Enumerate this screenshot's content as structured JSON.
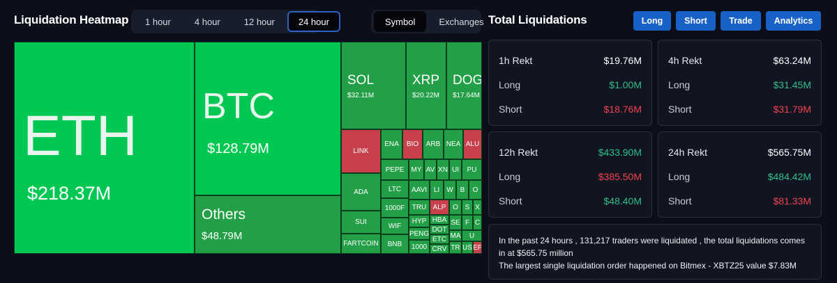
{
  "header": {
    "title": "Liquidation Heatmap",
    "time_tabs": [
      "1 hour",
      "4 hour",
      "12 hour",
      "24 hour"
    ],
    "active_time_tab": "24 hour",
    "mode_tabs": [
      "Symbol",
      "Exchanges"
    ],
    "active_mode_tab": "Symbol"
  },
  "right_header": {
    "title": "Total Liquidations",
    "buttons": [
      "Long",
      "Short",
      "Trade",
      "Analytics"
    ]
  },
  "heatmap": {
    "big": [
      {
        "symbol": "ETH",
        "value": "$218.37M"
      },
      {
        "symbol": "BTC",
        "value": "$128.79M"
      },
      {
        "symbol": "Others",
        "value": "$48.79M"
      },
      {
        "symbol": "SOL",
        "value": "$32.11M"
      },
      {
        "symbol": "XRP",
        "value": "$20.22M"
      },
      {
        "symbol": "DOGE",
        "value": "$17.64M"
      }
    ],
    "small": [
      "LINK",
      "ENA",
      "BIO",
      "ARB",
      "NEA",
      "ALU",
      "PEPE",
      "MY",
      "AV",
      "XN",
      "UI",
      "PU",
      "ADA",
      "LTC",
      "AAVI",
      "LI",
      "W",
      "B",
      "O",
      "1000F",
      "TRU",
      "ALP",
      "O",
      "S",
      "X",
      "SUI",
      "WIF",
      "HYP",
      "HBA",
      "SE",
      "F",
      "C",
      "PENG",
      "DOT",
      "MA",
      "U",
      "FARTCOIN",
      "BNB",
      "1000",
      "ETC",
      "TR",
      "US",
      "CRV",
      "EF"
    ]
  },
  "stats": {
    "cards": [
      {
        "title": "1h Rekt",
        "total": "$19.76M",
        "long_label": "Long",
        "long": "$1.00M",
        "short_label": "Short",
        "short": "$18.76M"
      },
      {
        "title": "4h Rekt",
        "total": "$63.24M",
        "long_label": "Long",
        "long": "$31.45M",
        "short_label": "Short",
        "short": "$31.79M"
      },
      {
        "title": "12h Rekt",
        "total": "$433.90M",
        "long_label": "Long",
        "long": "$385.50M",
        "short_label": "Short",
        "short": "$48.40M"
      },
      {
        "title": "24h Rekt",
        "total": "$565.75M",
        "long_label": "Long",
        "long": "$484.42M",
        "short_label": "Short",
        "short": "$81.33M"
      }
    ]
  },
  "summary": {
    "line1": "In the past 24 hours , 131,217 traders were liquidated , the total liquidations comes in at $565.75 million",
    "line2": "The largest single liquidation order happened on Bitmex - XBTZ25 value $7.83M"
  },
  "colors": {
    "accent": "#1861c6",
    "long_green": "#2fbf89",
    "short_red": "#f0424f",
    "tile_green": "#23a047",
    "tile_bright_green": "#00c853",
    "tile_red": "#c8404c"
  }
}
